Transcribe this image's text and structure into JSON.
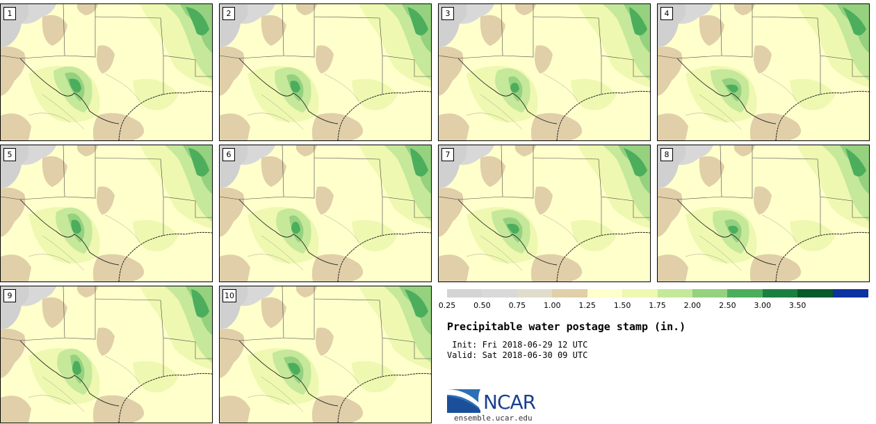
{
  "panels": [
    {
      "label": "1"
    },
    {
      "label": "2"
    },
    {
      "label": "3"
    },
    {
      "label": "4"
    },
    {
      "label": "5"
    },
    {
      "label": "6"
    },
    {
      "label": "7"
    },
    {
      "label": "8"
    },
    {
      "label": "9"
    },
    {
      "label": "10"
    }
  ],
  "colorbar": {
    "ticks": [
      "0.25",
      "0.50",
      "0.75",
      "1.00",
      "1.25",
      "1.50",
      "1.75",
      "2.00",
      "2.50",
      "3.00",
      "3.50"
    ],
    "colors": [
      "#d4d4d4",
      "#d9d9d9",
      "#e1ddcc",
      "#e0cfa8",
      "#ffffcc",
      "#eef8b0",
      "#c5e89a",
      "#95d17f",
      "#4cae5c",
      "#1a8040",
      "#085a2a",
      "#0c32a0"
    ]
  },
  "title": "Precipitable water postage stamp (in.)",
  "init_line": " Init: Fri 2018-06-29 12 UTC",
  "valid_line": "Valid: Sat 2018-06-30 09 UTC",
  "logo": {
    "name": "NCAR",
    "url": "ensemble.ucar.edu"
  }
}
